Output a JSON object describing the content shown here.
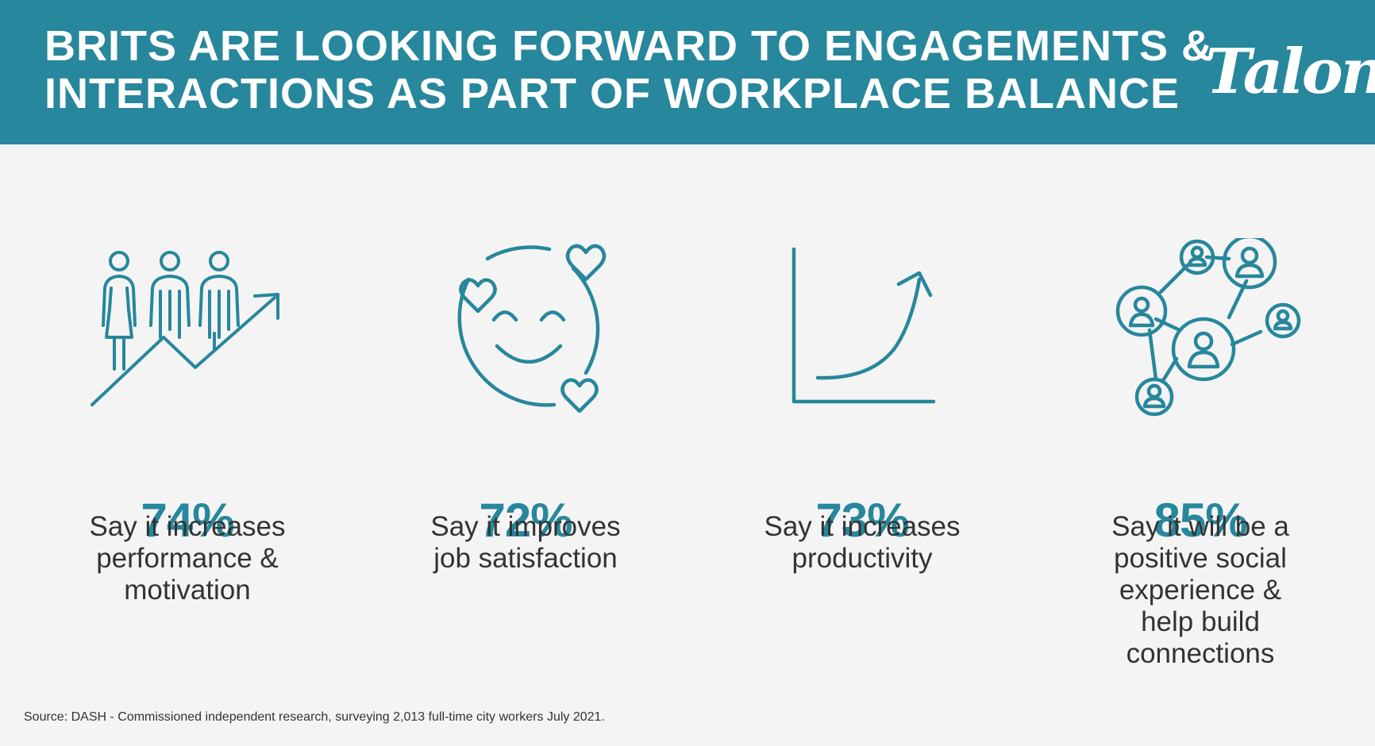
{
  "header": {
    "title_line1": "BRITS ARE LOOKING FORWARD TO ENGAGEMENTS &",
    "title_line2": "INTERACTIONS AS PART OF WORKPLACE BALANCE",
    "logo": "Talon",
    "background_color": "#27879c"
  },
  "accent_color": "#27879c",
  "stats": [
    {
      "icon": "people-growth-icon",
      "percent": "74%",
      "caption_lines": [
        "Say it increases",
        "performance &",
        "motivation"
      ]
    },
    {
      "icon": "smiley-hearts-icon",
      "percent": "72%",
      "caption_lines": [
        "Say it improves",
        "job satisfaction"
      ]
    },
    {
      "icon": "growth-curve-icon",
      "percent": "73%",
      "caption_lines": [
        "Say it increases",
        "productivity"
      ]
    },
    {
      "icon": "network-people-icon",
      "percent": "85%",
      "caption_lines": [
        "Say it will be a",
        "positive social",
        "experience &",
        "help build",
        "connections"
      ]
    }
  ],
  "source": "Source: DASH - Commissioned independent research, surveying 2,013 full-time city workers July 2021."
}
